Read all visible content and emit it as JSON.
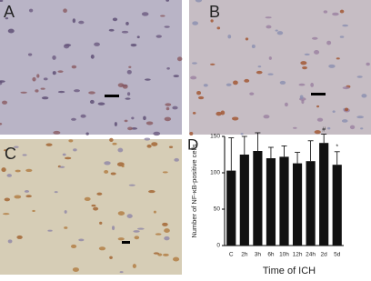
{
  "panels": [
    "A",
    "B",
    "C"
  ],
  "chart_data": {
    "type": "bar",
    "panel_label": "D",
    "x_label": "Time of ICH",
    "y_label": "Number of NF-κB-positive cells",
    "categories": [
      "C",
      "2h",
      "3h",
      "6h",
      "10h",
      "12h",
      "24h",
      "2d",
      "5d"
    ],
    "values": [
      103,
      125,
      130,
      120,
      122,
      113,
      116,
      141,
      111
    ],
    "errors": [
      45,
      25,
      25,
      15,
      15,
      15,
      28,
      12,
      18
    ],
    "value_markers": [
      null,
      null,
      null,
      null,
      null,
      null,
      null,
      "#",
      "*"
    ],
    "color": "#111111",
    "ylim": [
      0,
      150
    ],
    "yticks": [
      0,
      50,
      100,
      150
    ]
  }
}
